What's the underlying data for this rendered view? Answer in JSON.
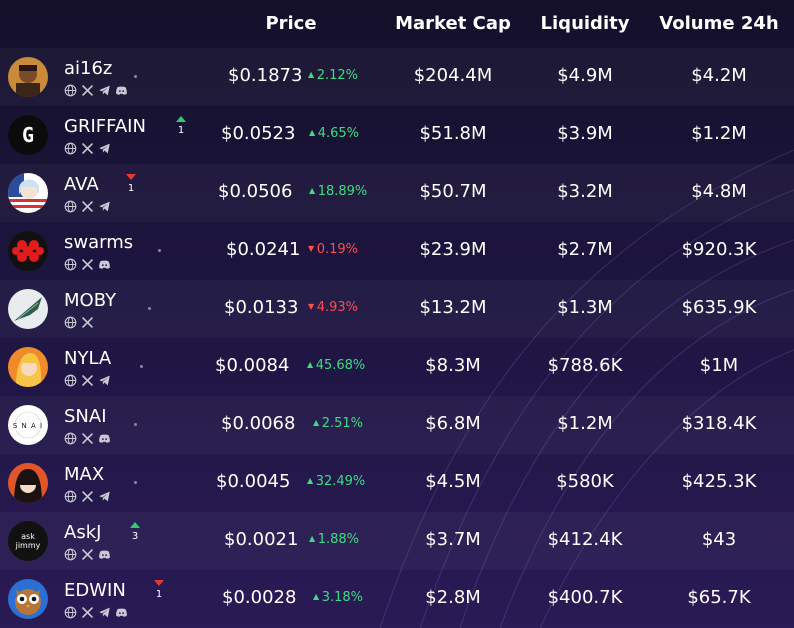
{
  "header": {
    "price": "Price",
    "market_cap": "Market Cap",
    "liquidity": "Liquidity",
    "volume": "Volume 24h"
  },
  "colors": {
    "up": "#3ddc84",
    "down": "#ff4d4d",
    "background": "#1d1540"
  },
  "rows": [
    {
      "name": "ai16z",
      "price": "$0.1873",
      "change": "2.12%",
      "direction": "up",
      "market_cap": "$204.4M",
      "liquidity": "$4.9M",
      "volume": "$4.2M",
      "socials": [
        "globe-icon",
        "x-icon",
        "telegram-icon",
        "discord-icon"
      ],
      "rank_change": null
    },
    {
      "name": "GRIFFAIN",
      "price": "$0.0523",
      "change": "4.65%",
      "direction": "up",
      "market_cap": "$51.8M",
      "liquidity": "$3.9M",
      "volume": "$1.2M",
      "socials": [
        "globe-icon",
        "x-icon",
        "telegram-icon"
      ],
      "rank_change": {
        "dir": "up",
        "value": "1"
      }
    },
    {
      "name": "AVA",
      "price": "$0.0506",
      "change": "18.89%",
      "direction": "up",
      "market_cap": "$50.7M",
      "liquidity": "$3.2M",
      "volume": "$4.8M",
      "socials": [
        "globe-icon",
        "x-icon",
        "telegram-icon"
      ],
      "rank_change": {
        "dir": "down",
        "value": "1"
      }
    },
    {
      "name": "swarms",
      "price": "$0.0241",
      "change": "0.19%",
      "direction": "down",
      "market_cap": "$23.9M",
      "liquidity": "$2.7M",
      "volume": "$920.3K",
      "socials": [
        "globe-icon",
        "x-icon",
        "discord-icon"
      ],
      "rank_change": null
    },
    {
      "name": "MOBY",
      "price": "$0.0133",
      "change": "4.93%",
      "direction": "down",
      "market_cap": "$13.2M",
      "liquidity": "$1.3M",
      "volume": "$635.9K",
      "socials": [
        "globe-icon",
        "x-icon"
      ],
      "rank_change": null
    },
    {
      "name": "NYLA",
      "price": "$0.0084",
      "change": "45.68%",
      "direction": "up",
      "market_cap": "$8.3M",
      "liquidity": "$788.6K",
      "volume": "$1M",
      "socials": [
        "globe-icon",
        "x-icon",
        "telegram-icon"
      ],
      "rank_change": null
    },
    {
      "name": "SNAI",
      "price": "$0.0068",
      "change": "2.51%",
      "direction": "up",
      "market_cap": "$6.8M",
      "liquidity": "$1.2M",
      "volume": "$318.4K",
      "socials": [
        "globe-icon",
        "x-icon",
        "discord-icon"
      ],
      "rank_change": null
    },
    {
      "name": "MAX",
      "price": "$0.0045",
      "change": "32.49%",
      "direction": "up",
      "market_cap": "$4.5M",
      "liquidity": "$580K",
      "volume": "$425.3K",
      "socials": [
        "globe-icon",
        "x-icon",
        "telegram-icon"
      ],
      "rank_change": null
    },
    {
      "name": "AskJ",
      "price": "$0.0021",
      "change": "1.88%",
      "direction": "up",
      "market_cap": "$3.7M",
      "liquidity": "$412.4K",
      "volume": "$43",
      "socials": [
        "globe-icon",
        "x-icon",
        "discord-icon"
      ],
      "rank_change": {
        "dir": "up",
        "value": "3"
      }
    },
    {
      "name": "EDWIN",
      "price": "$0.0028",
      "change": "3.18%",
      "direction": "up",
      "market_cap": "$2.8M",
      "liquidity": "$400.7K",
      "volume": "$65.7K",
      "socials": [
        "globe-icon",
        "x-icon",
        "telegram-icon",
        "discord-icon"
      ],
      "rank_change": {
        "dir": "down",
        "value": "1"
      }
    }
  ],
  "avatars": [
    {
      "icon": "ai16z-avatar-icon",
      "bg": "#c98a3a",
      "text": ""
    },
    {
      "icon": "griffain-avatar-icon",
      "bg": "#0b0b0b",
      "text": "G"
    },
    {
      "icon": "ava-avatar-icon",
      "bg": "#b8d4ef",
      "text": ""
    },
    {
      "icon": "swarms-avatar-icon",
      "bg": "#111111",
      "text": ""
    },
    {
      "icon": "moby-avatar-icon",
      "bg": "#e8ecef",
      "text": ""
    },
    {
      "icon": "nyla-avatar-icon",
      "bg": "#f08a2a",
      "text": ""
    },
    {
      "icon": "snai-avatar-icon",
      "bg": "#ffffff",
      "text": "S N A I"
    },
    {
      "icon": "max-avatar-icon",
      "bg": "#e0552a",
      "text": ""
    },
    {
      "icon": "askj-avatar-icon",
      "bg": "#111111",
      "text": "ask jimmy"
    },
    {
      "icon": "edwin-avatar-icon",
      "bg": "#2a6fd4",
      "text": ""
    }
  ]
}
